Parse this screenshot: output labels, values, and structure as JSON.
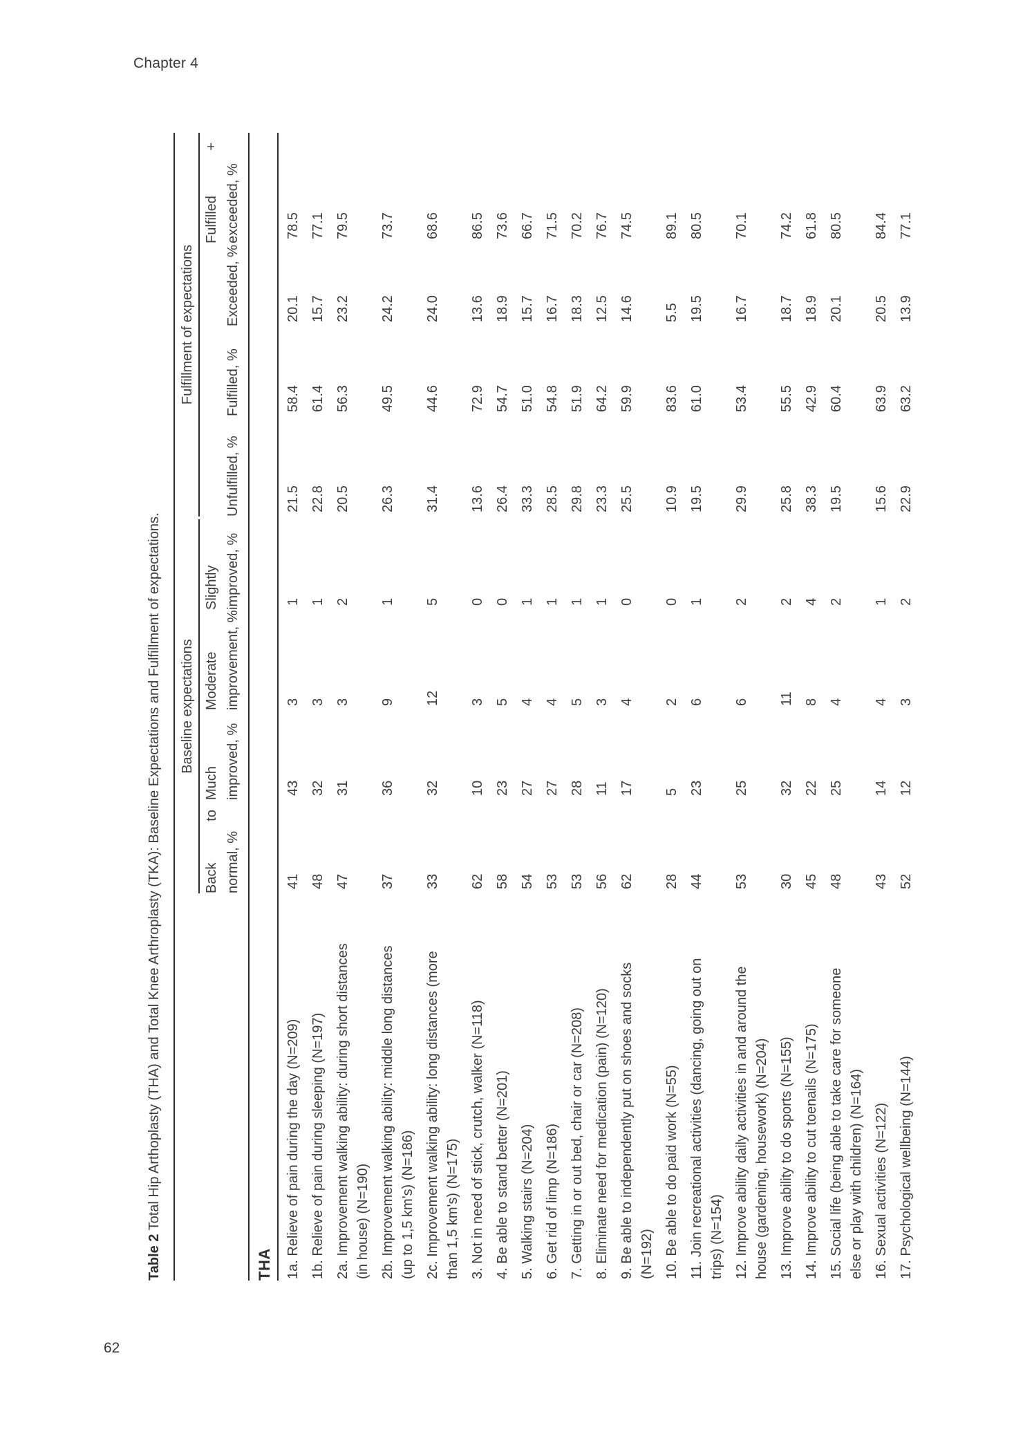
{
  "page": {
    "chapter": "Chapter 4",
    "page_number": "62"
  },
  "table": {
    "title_prefix": "Table 2",
    "title_rest": " Total Hip Arthoplasty (THA) and Total Knee Arthroplasty (TKA): Baseline Expectations and Fulfillment of expectations.",
    "group_headers": {
      "baseline": "Baseline expectations",
      "fulfillment": "Fulfillment of expectations"
    },
    "columns": [
      {
        "line1": [
          "Back",
          "to"
        ],
        "line2": "normal, %",
        "justify": true
      },
      {
        "line1": "Much",
        "line2": "improved, %"
      },
      {
        "line1": "Moderate",
        "line2": "improvement, %"
      },
      {
        "line1": "Slightly",
        "line2": "improved, %"
      },
      {
        "line2": "Unfulfilled, %"
      },
      {
        "line2": "Fulfilled, %"
      },
      {
        "line2": "Exceeded, %"
      },
      {
        "line1": [
          "Fulfilled",
          "+"
        ],
        "line2": "exceeded, %",
        "justify": true
      }
    ],
    "section": "THA",
    "rows": [
      {
        "label": [
          "1a. Relieve of pain during the day (N=209)"
        ],
        "values": [
          "41",
          "43",
          "3",
          "1",
          "21.5",
          "58.4",
          "20.1",
          "78.5"
        ]
      },
      {
        "label": [
          "1b. Relieve of pain during sleeping (N=197)"
        ],
        "values": [
          "48",
          "32",
          "3",
          "1",
          "22.8",
          "61.4",
          "15.7",
          "77.1"
        ]
      },
      {
        "label": [
          "2a. Improvement walking ability: during short distances",
          "(in house) (N=190)"
        ],
        "values": [
          "47",
          "31",
          "3",
          "2",
          "20.5",
          "56.3",
          "23.2",
          "79.5"
        ]
      },
      {
        "label": [
          "2b. Improvement walking ability: middle long distances",
          "(up to 1,5 km's) (N=186)"
        ],
        "values": [
          "37",
          "36",
          "9",
          "1",
          "26.3",
          "49.5",
          "24.2",
          "73.7"
        ]
      },
      {
        "label": [
          "2c. Improvement walking ability: long distances (more",
          "than 1,5 km's) (N=175)"
        ],
        "values": [
          "33",
          "32",
          "12",
          "5",
          "31.4",
          "44.6",
          "24.0",
          "68.6"
        ]
      },
      {
        "label": [
          "3. Not in need of stick, crutch, walker (N=118)"
        ],
        "values": [
          "62",
          "10",
          "3",
          "0",
          "13.6",
          "72.9",
          "13.6",
          "86.5"
        ]
      },
      {
        "label": [
          "4. Be able to stand better (N=201)"
        ],
        "values": [
          "58",
          "23",
          "5",
          "0",
          "26.4",
          "54.7",
          "18.9",
          "73.6"
        ]
      },
      {
        "label": [
          "5. Walking stairs (N=204)"
        ],
        "values": [
          "54",
          "27",
          "4",
          "1",
          "33.3",
          "51.0",
          "15.7",
          "66.7"
        ]
      },
      {
        "label": [
          "6. Get rid of limp (N=186)"
        ],
        "values": [
          "53",
          "27",
          "4",
          "1",
          "28.5",
          "54.8",
          "16.7",
          "71.5"
        ]
      },
      {
        "label": [
          "7. Getting in or out bed, chair or car (N=208)"
        ],
        "values": [
          "53",
          "28",
          "5",
          "1",
          "29.8",
          "51.9",
          "18.3",
          "70.2"
        ]
      },
      {
        "label": [
          "8. Eliminate need for medication (pain) (N=120)"
        ],
        "values": [
          "56",
          "11",
          "3",
          "1",
          "23.3",
          "64.2",
          "12.5",
          "76.7"
        ]
      },
      {
        "label": [
          "9. Be able to independently put on shoes and socks",
          "(N=192)"
        ],
        "values": [
          "62",
          "17",
          "4",
          "0",
          "25.5",
          "59.9",
          "14.6",
          "74.5"
        ]
      },
      {
        "label": [
          "10. Be able to do paid work (N=55)"
        ],
        "values": [
          "28",
          "5",
          "2",
          "0",
          "10.9",
          "83.6",
          "5.5",
          "89.1"
        ]
      },
      {
        "label": [
          "11. Join recreational activities (dancing, going out on",
          "trips) (N=154)"
        ],
        "values": [
          "44",
          "23",
          "6",
          "1",
          "19.5",
          "61.0",
          "19.5",
          "80.5"
        ]
      },
      {
        "label": [
          "12. Improve ability daily activities in and around the",
          "house (gardening, housework) (N=204)"
        ],
        "values": [
          "53",
          "25",
          "6",
          "2",
          "29.9",
          "53.4",
          "16.7",
          "70.1"
        ]
      },
      {
        "label": [
          "13. Improve ability to do sports (N=155)"
        ],
        "values": [
          "30",
          "32",
          "11",
          "2",
          "25.8",
          "55.5",
          "18.7",
          "74.2"
        ]
      },
      {
        "label": [
          "14. Improve ability to cut toenails (N=175)"
        ],
        "values": [
          "45",
          "22",
          "8",
          "4",
          "38.3",
          "42.9",
          "18.9",
          "61.8"
        ]
      },
      {
        "label": [
          "15. Social life (being able to take care for someone",
          "else or play with children) (N=164)"
        ],
        "values": [
          "48",
          "25",
          "4",
          "2",
          "19.5",
          "60.4",
          "20.1",
          "80.5"
        ]
      },
      {
        "label": [
          "16. Sexual activities (N=122)"
        ],
        "values": [
          "43",
          "14",
          "4",
          "1",
          "15.6",
          "63.9",
          "20.5",
          "84.4"
        ]
      },
      {
        "label": [
          "17. Psychological wellbeing (N=144)"
        ],
        "values": [
          "52",
          "12",
          "3",
          "2",
          "22.9",
          "63.2",
          "13.9",
          "77.1"
        ]
      }
    ]
  }
}
